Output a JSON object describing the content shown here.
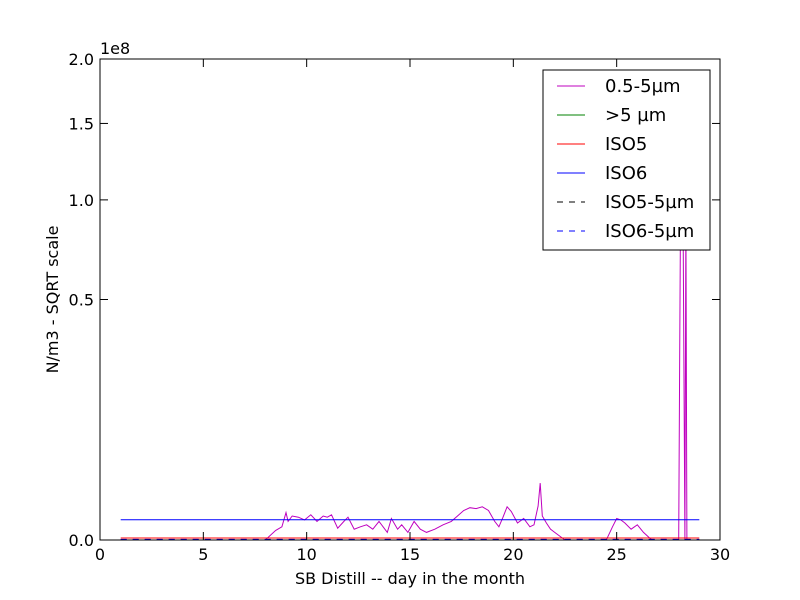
{
  "chart_data": {
    "type": "line",
    "title": "",
    "xlabel": "SB Distill -- day in the month",
    "ylabel": "N/m3 - SQRT scale",
    "y_scale": "sqrt",
    "y_offset_label": "1e8",
    "xlim": [
      0,
      30
    ],
    "ylim": [
      0,
      200000000
    ],
    "x_ticks": [
      0,
      5,
      10,
      15,
      20,
      25,
      30
    ],
    "x_tick_labels": [
      "0",
      "5",
      "10",
      "15",
      "20",
      "25",
      "30"
    ],
    "y_ticks": [
      0,
      50000000,
      100000000,
      150000000,
      200000000
    ],
    "y_tick_labels": [
      "0.0",
      "0.5",
      "1.0",
      "1.5",
      "2.0"
    ],
    "grid": false,
    "legend_position": "top-right",
    "series": [
      {
        "name": "0.5-5µm",
        "color": "#bf00bf",
        "dash": "solid",
        "x": [
          1,
          5,
          8,
          8.5,
          8.8,
          9.0,
          9.1,
          9.3,
          9.6,
          9.9,
          10.2,
          10.5,
          10.8,
          11.0,
          11.2,
          11.5,
          11.8,
          12.0,
          12.3,
          12.6,
          12.9,
          13.2,
          13.5,
          13.7,
          13.9,
          14.1,
          14.4,
          14.6,
          14.9,
          15.2,
          15.5,
          15.8,
          16.2,
          16.6,
          17.0,
          17.3,
          17.6,
          17.9,
          18.2,
          18.5,
          18.8,
          19.1,
          19.3,
          19.5,
          19.7,
          19.9,
          20.2,
          20.5,
          20.8,
          21.0,
          21.2,
          21.3,
          21.4,
          21.6,
          21.8,
          22.0,
          22.5,
          23.0,
          23.5,
          24.0,
          24.5,
          24.8,
          25.0,
          25.2,
          25.4,
          25.7,
          26.0,
          26.3,
          26.7,
          27.2,
          27.6,
          27.9,
          28.0,
          28.05,
          28.1,
          28.2,
          28.3,
          28.35,
          28.4,
          28.5,
          29
        ],
        "values": [
          0,
          0,
          0,
          80000,
          150000,
          650000,
          300000,
          500000,
          450000,
          350000,
          550000,
          300000,
          500000,
          450000,
          550000,
          120000,
          300000,
          450000,
          100000,
          150000,
          200000,
          100000,
          300000,
          150000,
          50000,
          400000,
          100000,
          200000,
          50000,
          300000,
          100000,
          50000,
          100000,
          200000,
          300000,
          500000,
          750000,
          900000,
          850000,
          950000,
          750000,
          300000,
          150000,
          450000,
          950000,
          700000,
          250000,
          400000,
          150000,
          200000,
          1000000,
          2800000,
          500000,
          250000,
          100000,
          50000,
          0,
          0,
          0,
          0,
          0,
          150000,
          400000,
          350000,
          250000,
          100000,
          200000,
          50000,
          0,
          0,
          0,
          0,
          0,
          30000000,
          110000000,
          120000000,
          0,
          90000000,
          0,
          0,
          0
        ]
      },
      {
        "name": ">5 µm",
        "color": "#008000",
        "dash": "solid",
        "x": [
          1,
          29
        ],
        "values": [
          0,
          0
        ]
      },
      {
        "name": "ISO5",
        "color": "#ff0000",
        "dash": "solid",
        "x": [
          1,
          29
        ],
        "values": [
          3520,
          3520
        ]
      },
      {
        "name": "ISO6",
        "color": "#0000ff",
        "dash": "solid",
        "x": [
          1,
          29
        ],
        "values": [
          352000,
          352000
        ]
      },
      {
        "name": "ISO5-5µm",
        "color": "#000000",
        "dash": "dashed",
        "x": [
          1,
          29
        ],
        "values": [
          29,
          29
        ]
      },
      {
        "name": "ISO6-5µm",
        "color": "#0000ff",
        "dash": "dashed",
        "x": [
          1,
          29
        ],
        "values": [
          293,
          293
        ]
      }
    ]
  }
}
